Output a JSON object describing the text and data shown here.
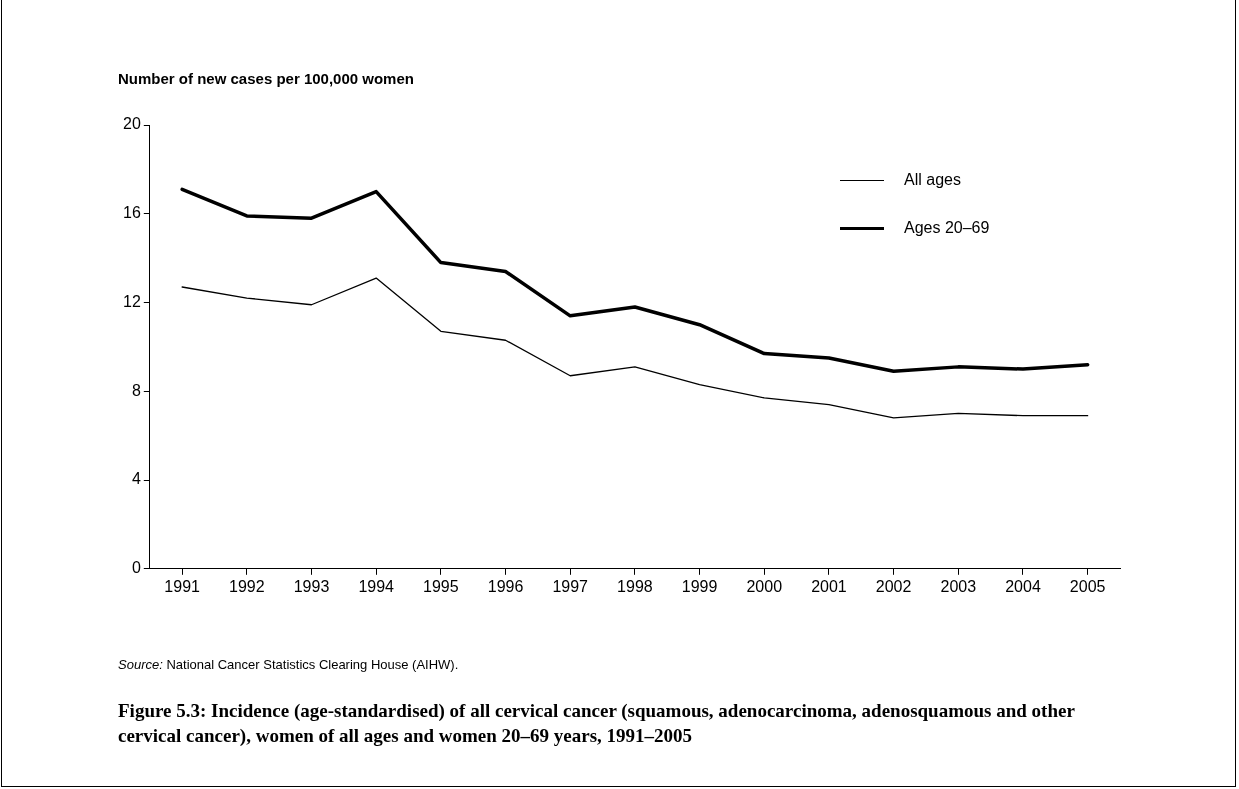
{
  "chart_data": {
    "type": "line",
    "title": "Figure 5.3: Incidence (age-standardised) of all cervical cancer (squamous, adenocarcinoma, adenosquamous and other cervical cancer), women of all ages and women 20–69 years, 1991–2005",
    "ylabel": "Number of new cases per 100,000 women",
    "annotations": [
      "Source: National Cancer Statistics Clearing House (AIHW)."
    ],
    "categories": [
      "1991",
      "1992",
      "1993",
      "1994",
      "1995",
      "1996",
      "1997",
      "1998",
      "1999",
      "2000",
      "2001",
      "2002",
      "2003",
      "2004",
      "2005"
    ],
    "series": [
      {
        "name": "All ages",
        "color": "#000000",
        "values": [
          12.7,
          12.2,
          11.9,
          13.1,
          10.7,
          10.3,
          8.7,
          9.1,
          8.3,
          7.7,
          7.4,
          6.8,
          7.0,
          6.9,
          6.9
        ]
      },
      {
        "name": "Ages 20–69",
        "color": "#000000",
        "values": [
          17.1,
          15.9,
          15.8,
          17.0,
          13.8,
          13.4,
          11.4,
          11.8,
          11.0,
          9.7,
          9.5,
          8.9,
          9.1,
          9.0,
          9.2
        ]
      }
    ],
    "ylim": [
      0,
      20
    ],
    "yticks": [
      0,
      4,
      8,
      12,
      16,
      20
    ],
    "grid": false,
    "legend": "top right",
    "marker": "none",
    "line_style": "solid"
  }
}
